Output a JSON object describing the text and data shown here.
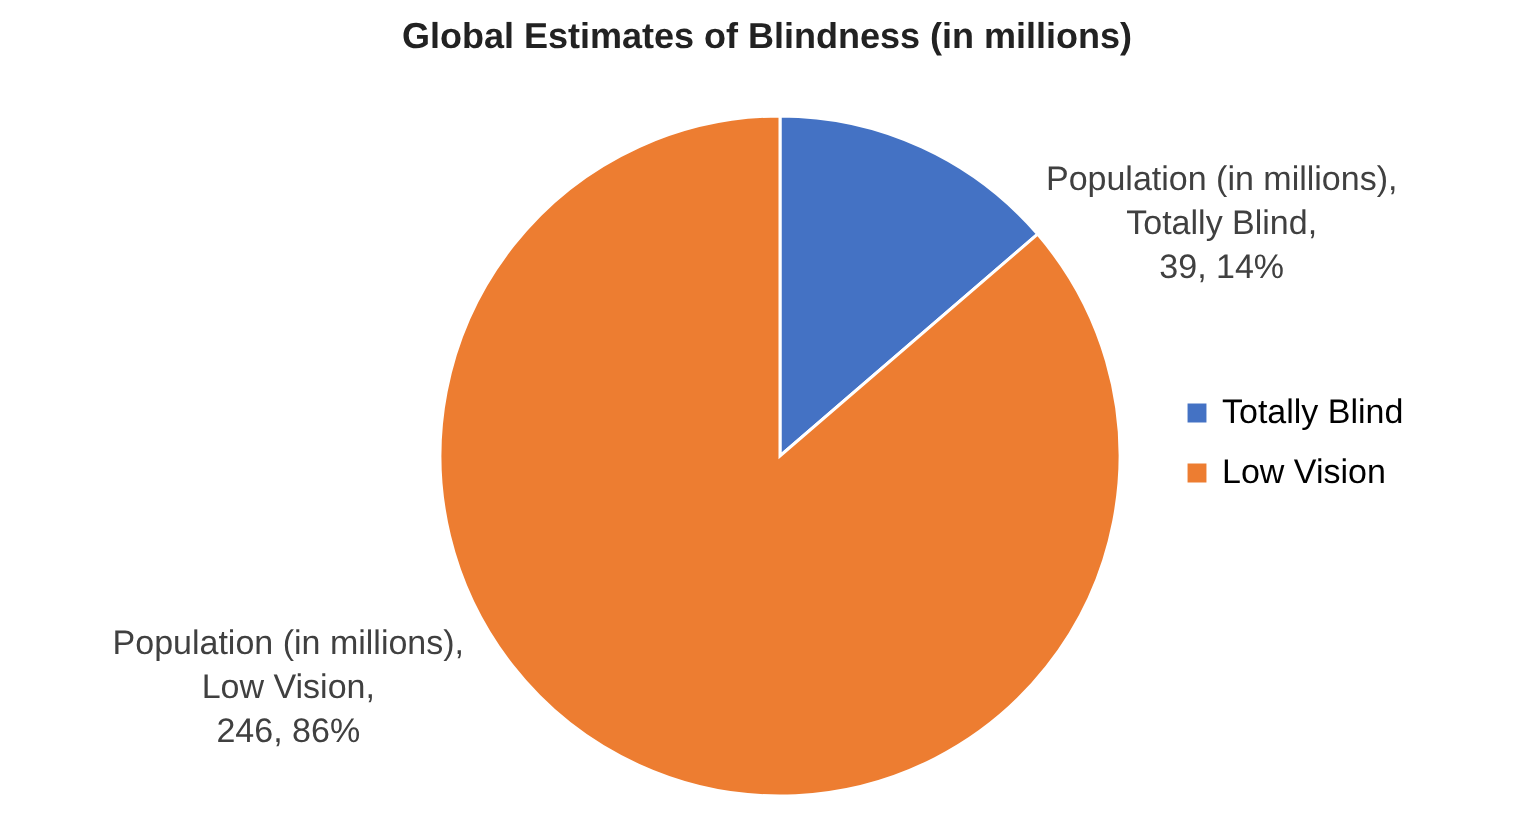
{
  "chart_data": {
    "type": "pie",
    "title": "Global Estimates of Blindness (in millions)",
    "categories": [
      "Totally Blind",
      "Low Vision"
    ],
    "values": [
      39,
      246
    ],
    "colors": [
      "#4472c4",
      "#ed7d31"
    ],
    "value_labels": [
      "Population (in millions), Totally Blind, 39, 14%",
      "Population (in millions), Low Vision, 246, 86%"
    ],
    "legend": "right"
  }
}
